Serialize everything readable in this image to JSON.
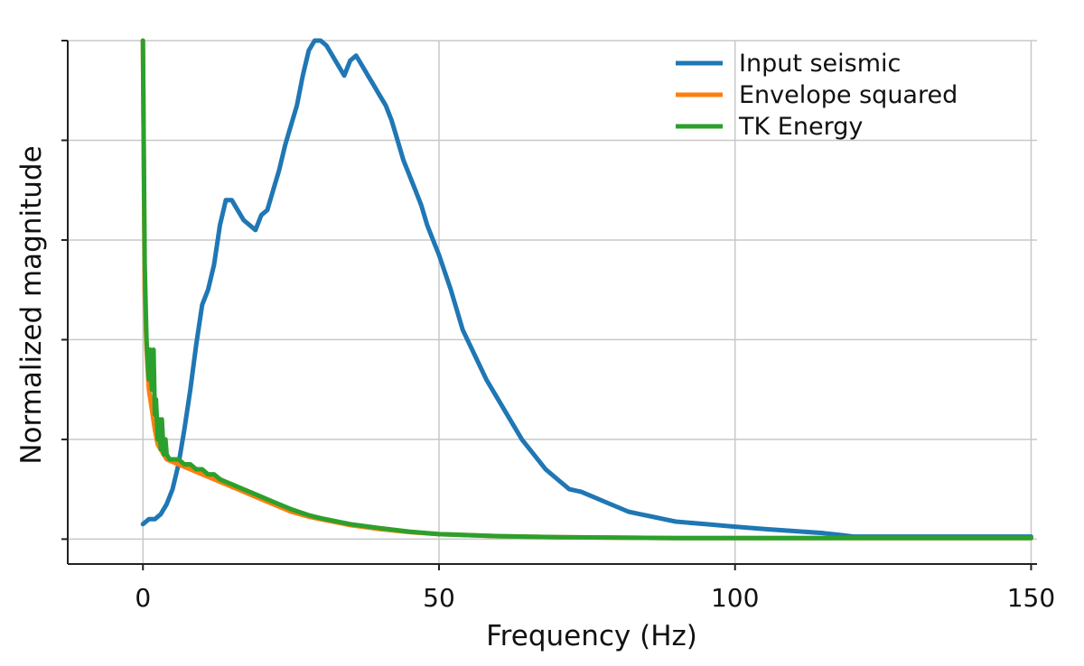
{
  "chart_data": {
    "type": "line",
    "title": "",
    "xlabel": "Frequency (Hz)",
    "ylabel": "Normalized magnitude",
    "xlim": [
      -12.7,
      151
    ],
    "ylim": [
      -0.05,
      1.0
    ],
    "xticks": [
      0,
      50,
      100,
      150
    ],
    "xtick_labels": [
      "0",
      "50",
      "100",
      "150"
    ],
    "yticks": [
      0,
      0.2,
      0.4,
      0.6,
      0.8,
      1.0
    ],
    "grid": true,
    "legend_position": "top-right",
    "series": [
      {
        "name": "Input seismic",
        "color": "#1f77b4",
        "x": [
          0,
          1,
          2,
          3,
          4,
          5,
          6,
          7,
          8,
          9,
          10,
          11,
          12,
          13,
          14,
          15,
          16,
          17,
          18,
          19,
          20,
          21,
          22,
          23,
          24,
          25,
          26,
          27,
          28,
          29,
          30,
          31,
          32,
          33,
          34,
          35,
          36,
          37,
          38,
          39,
          40,
          41,
          42,
          43,
          44,
          45,
          46,
          47,
          48,
          49,
          50,
          52,
          54,
          56,
          58,
          60,
          62,
          64,
          66,
          68,
          70,
          72,
          74,
          76,
          78,
          80,
          82,
          84,
          86,
          88,
          90,
          95,
          100,
          105,
          110,
          115,
          118,
          120,
          125,
          130,
          140,
          150
        ],
        "y": [
          0.03,
          0.04,
          0.04,
          0.05,
          0.07,
          0.1,
          0.15,
          0.22,
          0.3,
          0.39,
          0.47,
          0.5,
          0.55,
          0.63,
          0.68,
          0.68,
          0.66,
          0.64,
          0.63,
          0.62,
          0.65,
          0.66,
          0.7,
          0.74,
          0.79,
          0.83,
          0.87,
          0.93,
          0.98,
          1.0,
          1.0,
          0.99,
          0.97,
          0.95,
          0.93,
          0.96,
          0.97,
          0.95,
          0.93,
          0.91,
          0.89,
          0.87,
          0.84,
          0.8,
          0.76,
          0.73,
          0.7,
          0.67,
          0.63,
          0.6,
          0.57,
          0.5,
          0.42,
          0.37,
          0.32,
          0.28,
          0.24,
          0.2,
          0.17,
          0.14,
          0.12,
          0.1,
          0.095,
          0.085,
          0.075,
          0.065,
          0.055,
          0.05,
          0.045,
          0.04,
          0.035,
          0.03,
          0.025,
          0.02,
          0.016,
          0.012,
          0.008,
          0.005,
          0.005,
          0.005,
          0.005,
          0.005
        ]
      },
      {
        "name": "Envelope squared",
        "color": "#ff7f0e",
        "x": [
          0,
          0.3,
          0.6,
          1,
          1.5,
          2,
          2.5,
          3,
          3.5,
          4,
          5,
          6,
          7,
          8,
          9,
          10,
          11,
          12,
          13,
          14,
          15,
          16,
          18,
          20,
          22,
          25,
          28,
          30,
          35,
          40,
          45,
          50,
          55,
          60,
          70,
          80,
          90,
          100,
          120,
          150
        ],
        "y": [
          1.0,
          0.5,
          0.38,
          0.3,
          0.26,
          0.22,
          0.19,
          0.18,
          0.17,
          0.16,
          0.155,
          0.15,
          0.145,
          0.14,
          0.135,
          0.13,
          0.125,
          0.12,
          0.115,
          0.11,
          0.105,
          0.1,
          0.09,
          0.08,
          0.07,
          0.055,
          0.045,
          0.04,
          0.028,
          0.02,
          0.014,
          0.01,
          0.008,
          0.006,
          0.004,
          0.003,
          0.002,
          0.002,
          0.002,
          0.002
        ]
      },
      {
        "name": "TK Energy",
        "color": "#2ca02c",
        "x": [
          0,
          0.3,
          0.6,
          1,
          1.2,
          1.5,
          1.8,
          2,
          2.2,
          2.5,
          2.8,
          3,
          3.2,
          3.5,
          3.8,
          4,
          4.5,
          5,
          6,
          7,
          8,
          9,
          10,
          11,
          12,
          13,
          14,
          15,
          16,
          18,
          20,
          22,
          25,
          28,
          30,
          35,
          40,
          45,
          50,
          55,
          60,
          70,
          80,
          90,
          100,
          120,
          150
        ],
        "y": [
          1.0,
          0.55,
          0.4,
          0.32,
          0.38,
          0.3,
          0.38,
          0.25,
          0.28,
          0.2,
          0.24,
          0.18,
          0.24,
          0.17,
          0.2,
          0.17,
          0.16,
          0.16,
          0.16,
          0.15,
          0.15,
          0.14,
          0.14,
          0.13,
          0.13,
          0.12,
          0.115,
          0.11,
          0.105,
          0.095,
          0.085,
          0.075,
          0.06,
          0.048,
          0.042,
          0.03,
          0.022,
          0.015,
          0.01,
          0.008,
          0.006,
          0.004,
          0.003,
          0.002,
          0.002,
          0.002,
          0.002
        ]
      }
    ]
  }
}
